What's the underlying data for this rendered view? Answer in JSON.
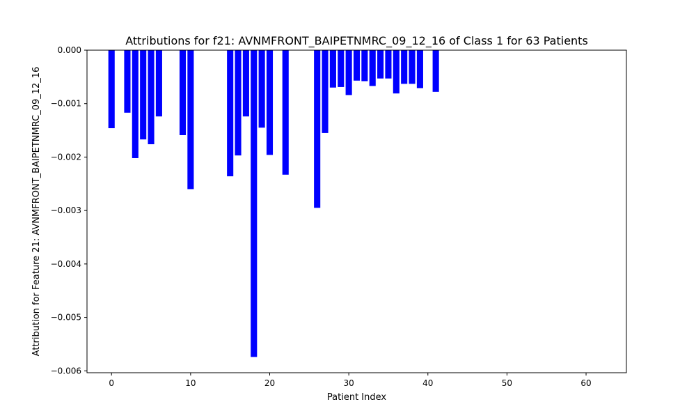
{
  "chart_data": {
    "type": "bar",
    "title": "Attributions for f21: AVNMFRONT_BAIPETNMRC_09_12_16 of Class 1 for 63 Patients",
    "xlabel": "Patient Index",
    "ylabel": "Attribution for Feature 21: AVNMFRONT_BAIPETNMRC_09_12_16",
    "x": [
      0,
      1,
      2,
      3,
      4,
      5,
      6,
      7,
      8,
      9,
      10,
      11,
      12,
      13,
      14,
      15,
      16,
      17,
      18,
      19,
      20,
      21,
      22,
      23,
      24,
      25,
      26,
      27,
      28,
      29,
      30,
      31,
      32,
      33,
      34,
      35,
      36,
      37,
      38,
      39,
      40,
      41,
      42,
      43,
      44,
      45,
      46,
      47,
      48,
      49,
      50,
      51,
      52,
      53,
      54,
      55,
      56,
      57,
      58,
      59,
      60,
      61,
      62
    ],
    "values": [
      -0.00146,
      0,
      -0.00117,
      -0.00202,
      -0.00167,
      -0.00176,
      -0.00124,
      0,
      0,
      -0.00159,
      -0.0026,
      0,
      0,
      0,
      0,
      -0.00236,
      -0.00197,
      -0.00124,
      -0.00574,
      -0.00145,
      -0.00196,
      0,
      -0.00233,
      0,
      0,
      0,
      -0.00295,
      -0.00155,
      -0.0007,
      -0.00069,
      -0.00084,
      -0.00057,
      -0.00058,
      -0.00067,
      -0.00053,
      -0.00053,
      -0.00081,
      -0.00063,
      -0.00063,
      -0.00071,
      0,
      -0.00078,
      0,
      0,
      0,
      0,
      0,
      0,
      0,
      0,
      0,
      0,
      0,
      0,
      0,
      0,
      0,
      0,
      0,
      0,
      0,
      0,
      0
    ],
    "xlim": [
      -3.1,
      65.1
    ],
    "ylim": [
      -0.006035,
      0
    ],
    "xticks": [
      0,
      10,
      20,
      30,
      40,
      50,
      60
    ],
    "xtick_labels": [
      "0",
      "10",
      "20",
      "30",
      "40",
      "50",
      "60"
    ],
    "yticks": [
      0,
      -0.001,
      -0.002,
      -0.003,
      -0.004,
      -0.005,
      -0.006
    ],
    "ytick_labels": [
      "0.000",
      "−0.001",
      "−0.002",
      "−0.003",
      "−0.004",
      "−0.005",
      "−0.006"
    ],
    "bar_color": "#0000ff",
    "grid": false,
    "legend": "none"
  }
}
